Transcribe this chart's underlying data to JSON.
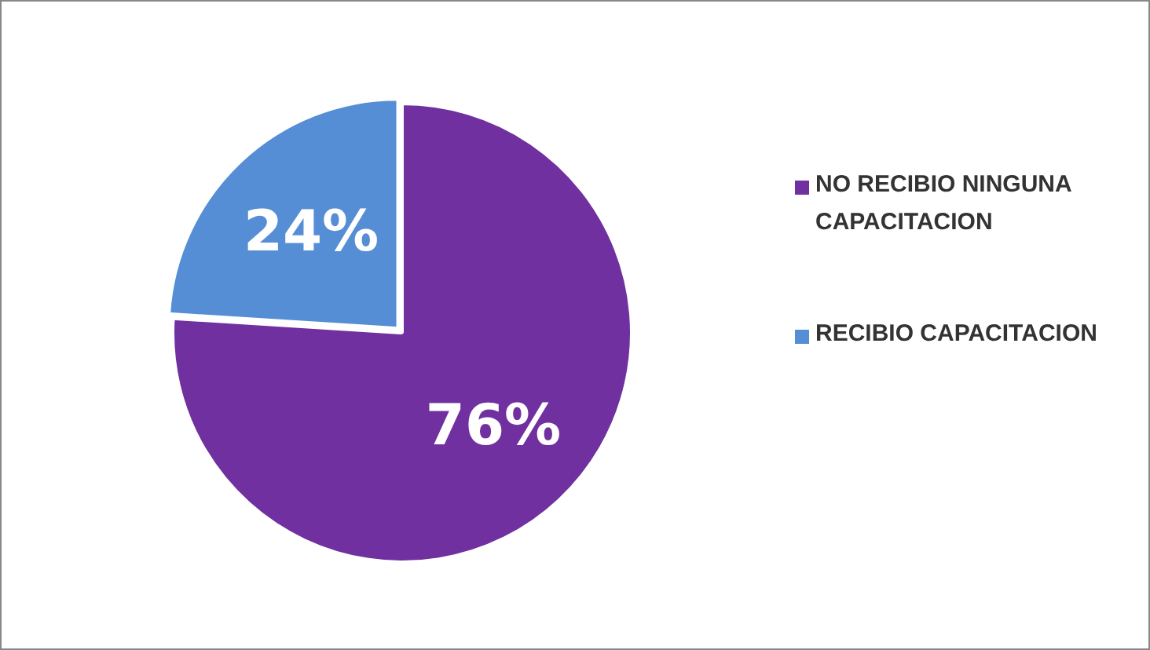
{
  "chart_data": {
    "type": "pie",
    "categories": [
      "NO RECIBIO NINGUNA CAPACITACION",
      "RECIBIO CAPACITACION"
    ],
    "values": [
      76,
      24
    ],
    "colors": [
      "#7030a0",
      "#558ed5"
    ],
    "value_labels": [
      "76%",
      "24%"
    ],
    "legend": "right"
  }
}
